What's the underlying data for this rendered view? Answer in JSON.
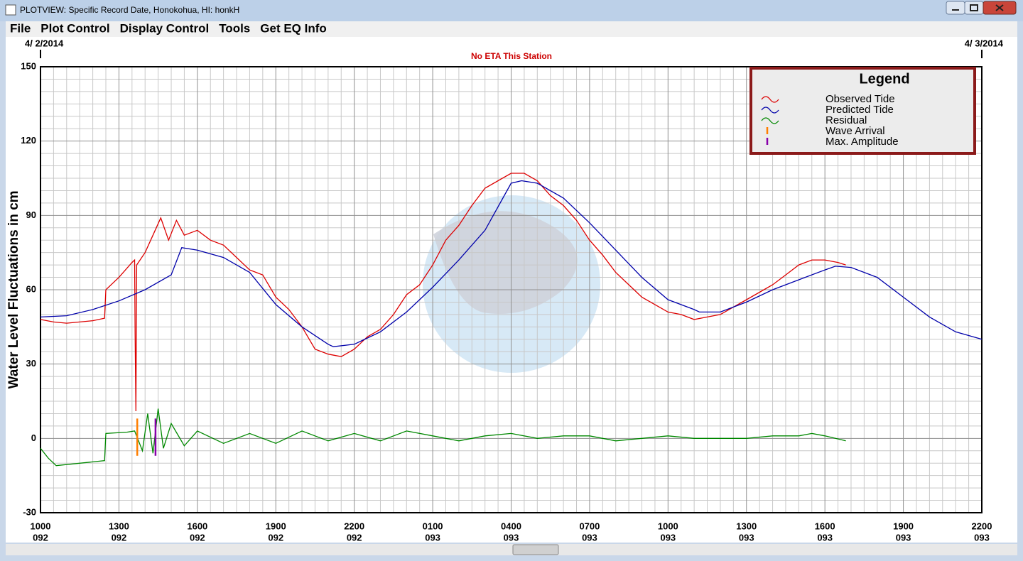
{
  "window": {
    "title": "PLOTVIEW: Specific Record Date, Honokohua, HI: honkH"
  },
  "menu": [
    "File",
    "Plot Control",
    "Display Control",
    "Tools",
    "Get EQ Info"
  ],
  "chart_data": {
    "type": "line",
    "subtitle": "No ETA This Station",
    "y_label": "Water Level Fluctuations in cm",
    "legend_title": "Legend",
    "legend": "upper right",
    "grid": true,
    "date_markers": [
      {
        "x": 0,
        "label": "4/ 2/2014"
      },
      {
        "x": 36,
        "label": "4/ 3/2014"
      }
    ],
    "xlim": [
      0,
      36
    ],
    "xticks": [
      {
        "value": 0,
        "label": "1000"
      },
      {
        "value": 3,
        "label": "1300"
      },
      {
        "value": 6,
        "label": "1600"
      },
      {
        "value": 9,
        "label": "1900"
      },
      {
        "value": 12,
        "label": "2200"
      },
      {
        "value": 15,
        "label": "0100"
      },
      {
        "value": 18,
        "label": "0400"
      },
      {
        "value": 21,
        "label": "0700"
      },
      {
        "value": 24,
        "label": "1000"
      },
      {
        "value": 27,
        "label": "1300"
      },
      {
        "value": 30,
        "label": "1600"
      },
      {
        "value": 33,
        "label": "1900"
      },
      {
        "value": 36,
        "label": "2200"
      }
    ],
    "xtick_days": [
      "092",
      "092",
      "092",
      "092",
      "092",
      "093",
      "093",
      "093",
      "093",
      "093",
      "093",
      "093",
      "093"
    ],
    "ylim": [
      -30,
      150
    ],
    "yticks": [
      -30,
      0,
      30,
      60,
      90,
      120,
      150
    ],
    "series": [
      {
        "name": "Observed Tide",
        "color": "#dd0000",
        "x": [
          0,
          0.5,
          1,
          2,
          2.45,
          2.5,
          3,
          3.5,
          3.6,
          3.62,
          3.65,
          3.68,
          4,
          4.3,
          4.6,
          4.9,
          5.2,
          5.5,
          6,
          6.5,
          7,
          7.5,
          8,
          8.5,
          9,
          9.5,
          10,
          10.5,
          11,
          11.5,
          12,
          12.5,
          13,
          13.5,
          14,
          14.5,
          15,
          15.5,
          16,
          16.5,
          17,
          17.5,
          18,
          18.5,
          19,
          19.5,
          20,
          20.5,
          21,
          21.5,
          22,
          22.5,
          23,
          23.5,
          24,
          24.5,
          25,
          25.5,
          26,
          26.5,
          27,
          27.5,
          28,
          28.5,
          29,
          29.5,
          30,
          30.5,
          30.8
        ],
        "values": [
          48,
          47,
          46.5,
          47.5,
          48.5,
          60,
          65,
          71,
          72,
          42,
          11,
          70,
          75,
          82,
          89,
          80,
          88,
          82,
          84,
          80,
          78,
          73,
          68,
          66,
          57,
          52,
          45,
          36,
          34,
          33,
          36,
          41,
          44,
          50,
          58,
          62,
          70,
          80,
          86,
          94,
          101,
          104,
          107,
          107,
          104,
          98,
          94,
          88,
          80,
          74,
          67,
          62,
          57,
          54,
          51,
          50,
          48,
          49,
          50,
          53,
          56,
          59,
          62,
          66,
          70,
          72,
          72,
          71,
          70
        ]
      },
      {
        "name": "Predicted Tide",
        "color": "#0000aa",
        "x": [
          0,
          1,
          2,
          3,
          4,
          5,
          5.4,
          6,
          7,
          8,
          9,
          10,
          11,
          11.2,
          12,
          13,
          14,
          15,
          16,
          17,
          18,
          18.4,
          19,
          20,
          21,
          22,
          23,
          24,
          25,
          25.2,
          26,
          27,
          28,
          29,
          30,
          30.4,
          31,
          32,
          33,
          34,
          35,
          36
        ],
        "values": [
          49,
          49.5,
          52,
          55.5,
          60,
          66,
          77,
          76,
          73,
          67,
          54,
          45,
          38,
          37,
          38,
          43,
          51,
          61,
          72,
          84,
          103,
          104,
          103,
          97,
          87,
          76,
          65,
          56,
          52,
          51,
          51,
          55,
          60,
          64,
          68,
          69.5,
          69,
          65,
          57,
          49,
          43,
          40
        ]
      },
      {
        "name": "Residual",
        "color": "#008800",
        "x": [
          0,
          0.3,
          0.6,
          2.45,
          2.5,
          3.3,
          3.6,
          3.9,
          4.1,
          4.3,
          4.5,
          4.7,
          5,
          5.5,
          6,
          7,
          8,
          9,
          10,
          11,
          12,
          13,
          14,
          15,
          16,
          17,
          18,
          19,
          20,
          21,
          22,
          23,
          24,
          25,
          26,
          27,
          28,
          29,
          29.5,
          30,
          30.8
        ],
        "values": [
          -4,
          -8,
          -11,
          -9,
          2,
          2.5,
          3,
          -5,
          10,
          -6,
          12,
          -4,
          6,
          -3,
          3,
          -2,
          2,
          -2,
          3,
          -1,
          2,
          -1,
          3,
          1,
          -1,
          1,
          2,
          0,
          1,
          1,
          -1,
          0,
          1,
          0,
          0,
          0,
          1,
          1,
          2,
          1,
          -1
        ]
      },
      {
        "name": "Wave Arrival",
        "color": "#ff7f00",
        "x": [
          3.7,
          3.7
        ],
        "values": [
          -7,
          8
        ]
      },
      {
        "name": "Max. Amplitude",
        "color": "#8800aa",
        "x": [
          4.4,
          4.4
        ],
        "values": [
          -7,
          8
        ]
      }
    ]
  }
}
